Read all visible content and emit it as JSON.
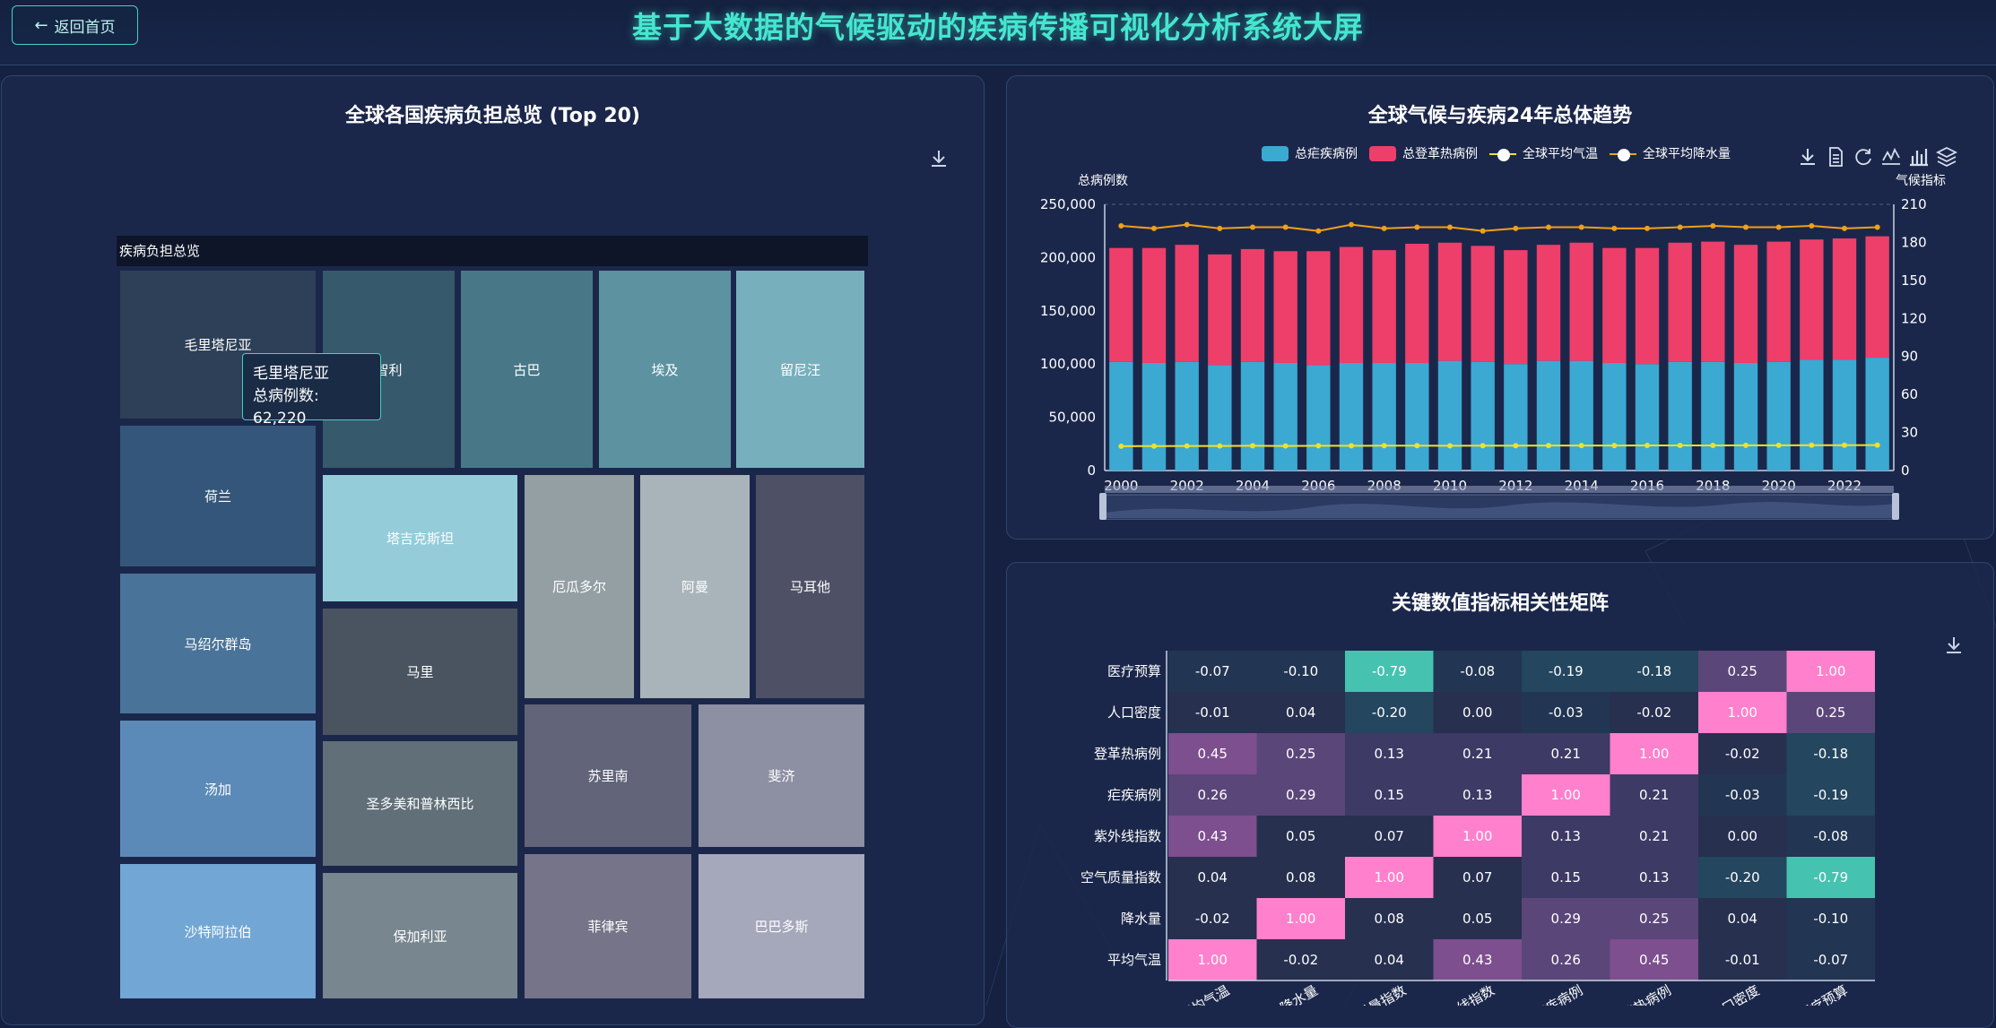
{
  "header": {
    "title": "基于大数据的气候驱动的疾病传播可视化分析系统大屏",
    "back_label": "返回首页"
  },
  "treemap_panel": {
    "title": "全球各国疾病负担总览 (Top 20)",
    "root_label": "疾病负担总览",
    "tooltip": {
      "name": "毛里塔尼亚",
      "value_text": "总病例数: 62,220"
    },
    "countries": [
      "毛里塔尼亚",
      "荷兰",
      "马绍尔群岛",
      "汤加",
      "沙特阿拉伯",
      "智利",
      "古巴",
      "埃及",
      "留尼汪",
      "塔吉克斯坦",
      "马里",
      "圣多美和普林西比",
      "保加利亚",
      "厄瓜多尔",
      "阿曼",
      "马耳他",
      "苏里南",
      "斐济",
      "菲律宾",
      "巴巴多斯"
    ],
    "colors": {
      "毛里塔尼亚": "#2e4058",
      "荷兰": "#34567a",
      "马绍尔群岛": "#4a7399",
      "汤加": "#5c8ab8",
      "沙特阿拉伯": "#72a6d4",
      "智利": "#36596b",
      "古巴": "#487887",
      "埃及": "#5d93a1",
      "留尼汪": "#78afbc",
      "塔吉克斯坦": "#94ccd9",
      "马里": "#4a5461",
      "圣多美和普林西比": "#606f78",
      "保加利亚": "#78868f",
      "厄瓜多尔": "#949fa4",
      "阿曼": "#a8b4b9",
      "马耳他": "#4e5166",
      "苏里南": "#626479",
      "斐济": "#8d8fa3",
      "菲律宾": "#757488",
      "巴巴多斯": "#a5a7bb"
    }
  },
  "trend_panel": {
    "title": "全球气候与疾病24年总体趋势",
    "legend": [
      "总疟疾病例",
      "总登革热病例",
      "全球平均气温",
      "全球平均降水量"
    ],
    "series_colors": {
      "malaria": "#3ba9d2",
      "dengue": "#ee3e6a",
      "temp": "#f0e02a",
      "precip": "#f0a018"
    }
  },
  "corr_panel": {
    "title": "关键数值指标相关性矩阵",
    "rows_top_to_bottom": [
      "医疗预算",
      "人口密度",
      "登革热病例",
      "疟疾病例",
      "紫外线指数",
      "空气质量指数",
      "降水量",
      "平均气温"
    ],
    "columns": [
      "平均气温",
      "降水量",
      "空气质量指数",
      "紫外线指数",
      "疟疾病例",
      "登革热病例",
      "人口密度",
      "医疗预算"
    ],
    "column_labels_visible": [
      "平均气温",
      "降水量",
      "气质量指数",
      "紫外线指数",
      "疟疾病例",
      "登革热病例",
      "人口密度",
      "医疗预算"
    ]
  },
  "chart_data": [
    {
      "type": "bar",
      "title": "全球气候与疾病24年总体趋势",
      "x": [
        2000,
        2001,
        2002,
        2003,
        2004,
        2005,
        2006,
        2007,
        2008,
        2009,
        2010,
        2011,
        2012,
        2013,
        2014,
        2015,
        2016,
        2017,
        2018,
        2019,
        2020,
        2021,
        2022,
        2023
      ],
      "x_tick_labels": [
        "2000",
        "2002",
        "2004",
        "2006",
        "2008",
        "2010",
        "2012",
        "2014",
        "2016",
        "2018",
        "2020",
        "2022"
      ],
      "ylabel": "总病例数",
      "ylabel_right": "气候指标",
      "ylim": [
        0,
        250000
      ],
      "ylim_right": [
        0,
        210
      ],
      "y_ticks": [
        "0",
        "50,000",
        "100,000",
        "150,000",
        "200,000",
        "250,000"
      ],
      "y_right_ticks": [
        "0",
        "30",
        "60",
        "90",
        "120",
        "150",
        "180",
        "210"
      ],
      "stacked": true,
      "series": [
        {
          "name": "总疟疾病例",
          "axis": "left",
          "type": "bar",
          "values": [
            102000,
            101000,
            102000,
            99000,
            102000,
            101000,
            99000,
            101000,
            101000,
            101000,
            103000,
            102000,
            100000,
            103000,
            103000,
            101000,
            100000,
            102000,
            102000,
            101000,
            102000,
            104000,
            104000,
            106000
          ]
        },
        {
          "name": "总登革热病例",
          "axis": "left",
          "type": "bar",
          "values": [
            107000,
            108000,
            110000,
            104000,
            106000,
            105000,
            107000,
            109000,
            106000,
            112000,
            111000,
            109000,
            107000,
            109000,
            111000,
            108000,
            109000,
            112000,
            113000,
            111000,
            113000,
            113000,
            114000,
            114000
          ]
        },
        {
          "name": "全球平均气温",
          "axis": "right",
          "type": "line",
          "values": [
            19.2,
            19.3,
            19.4,
            19.4,
            19.5,
            19.4,
            19.5,
            19.5,
            19.6,
            19.6,
            19.5,
            19.6,
            19.6,
            19.7,
            19.7,
            19.7,
            19.8,
            19.8,
            19.8,
            19.9,
            19.9,
            20.0,
            20.0,
            20.1
          ]
        },
        {
          "name": "全球平均降水量",
          "axis": "right",
          "type": "line",
          "values": [
            193,
            191,
            194,
            191,
            192,
            192,
            189,
            194,
            191,
            192,
            192,
            189,
            191,
            192,
            192,
            191,
            191,
            192,
            193,
            192,
            192,
            193,
            191,
            192
          ]
        }
      ]
    },
    {
      "type": "heatmap",
      "title": "关键数值指标相关性矩阵",
      "rows": [
        "医疗预算",
        "人口密度",
        "登革热病例",
        "疟疾病例",
        "紫外线指数",
        "空气质量指数",
        "降水量",
        "平均气温"
      ],
      "columns": [
        "平均气温",
        "降水量",
        "空气质量指数",
        "紫外线指数",
        "疟疾病例",
        "登革热病例",
        "人口密度",
        "医疗预算"
      ],
      "values": [
        [
          -0.07,
          -0.1,
          -0.79,
          -0.08,
          -0.19,
          -0.18,
          0.25,
          1.0
        ],
        [
          -0.01,
          0.04,
          -0.2,
          0.0,
          -0.03,
          -0.02,
          1.0,
          0.25
        ],
        [
          0.45,
          0.25,
          0.13,
          0.21,
          0.21,
          1.0,
          -0.02,
          -0.18
        ],
        [
          0.26,
          0.29,
          0.15,
          0.13,
          1.0,
          0.21,
          -0.03,
          -0.19
        ],
        [
          0.43,
          0.05,
          0.07,
          1.0,
          0.13,
          0.21,
          0.0,
          -0.08
        ],
        [
          0.04,
          0.08,
          1.0,
          0.07,
          0.15,
          0.13,
          -0.2,
          -0.79
        ],
        [
          -0.02,
          1.0,
          0.08,
          0.05,
          0.29,
          0.25,
          0.04,
          -0.1
        ],
        [
          1.0,
          -0.02,
          0.04,
          0.43,
          0.26,
          0.45,
          -0.01,
          -0.07
        ]
      ]
    }
  ]
}
